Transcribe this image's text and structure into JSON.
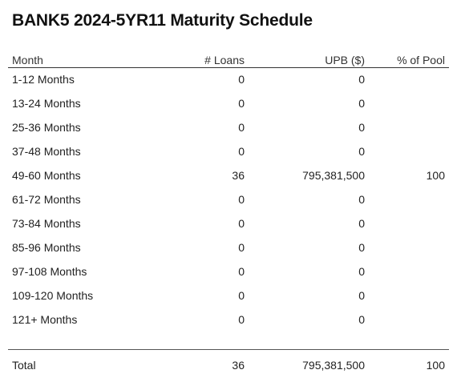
{
  "title": "BANK5 2024-5YR11 Maturity Schedule",
  "columns": {
    "month": "Month",
    "loans": "# Loans",
    "upb": "UPB ($)",
    "pool": "% of Pool"
  },
  "rows": [
    {
      "month": "1-12 Months",
      "loans": "0",
      "upb": "0",
      "pool": ""
    },
    {
      "month": "13-24 Months",
      "loans": "0",
      "upb": "0",
      "pool": ""
    },
    {
      "month": "25-36 Months",
      "loans": "0",
      "upb": "0",
      "pool": ""
    },
    {
      "month": "37-48 Months",
      "loans": "0",
      "upb": "0",
      "pool": ""
    },
    {
      "month": "49-60 Months",
      "loans": "36",
      "upb": "795,381,500",
      "pool": "100"
    },
    {
      "month": "61-72 Months",
      "loans": "0",
      "upb": "0",
      "pool": ""
    },
    {
      "month": "73-84 Months",
      "loans": "0",
      "upb": "0",
      "pool": ""
    },
    {
      "month": "85-96 Months",
      "loans": "0",
      "upb": "0",
      "pool": ""
    },
    {
      "month": "97-108 Months",
      "loans": "0",
      "upb": "0",
      "pool": ""
    },
    {
      "month": "109-120 Months",
      "loans": "0",
      "upb": "0",
      "pool": ""
    },
    {
      "month": "121+ Months",
      "loans": "0",
      "upb": "0",
      "pool": ""
    }
  ],
  "total": {
    "month": "Total",
    "loans": "36",
    "upb": "795,381,500",
    "pool": "100"
  }
}
